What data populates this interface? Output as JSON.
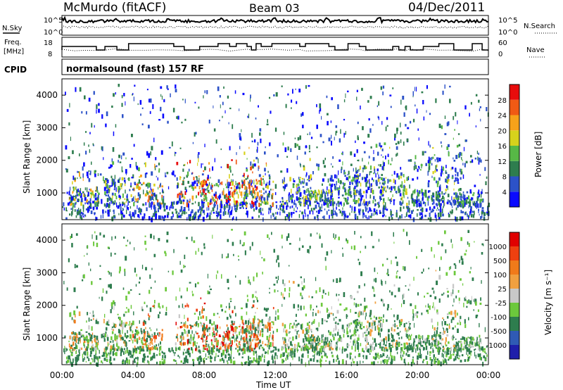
{
  "header": {
    "station": "McMurdo (fitACF)",
    "beam": "Beam 03",
    "date": "04/Dec/2011"
  },
  "top_panels": {
    "nsky_label": "N.Sky",
    "nsearch_label": "N.Search",
    "nsky_ticks": [
      "10^5",
      "10^0"
    ],
    "nsearch_ticks": [
      "10^5",
      "10^0"
    ],
    "freq_label_line1": "Freq.",
    "freq_label_line2": "[MHz]",
    "freq_ticks": [
      "18",
      "8"
    ],
    "nave_label": "Nave",
    "nave_ticks": [
      "60",
      "0"
    ],
    "cpid_label": "CPID",
    "cpid_text": "normalsound (fast) 157 RF"
  },
  "colors": {
    "power": [
      "#0a0aff",
      "#2c52c8",
      "#2e7d4e",
      "#57b846",
      "#d7d21c",
      "#f7a21a",
      "#f05a14",
      "#e80c0c"
    ],
    "velocity": [
      "#1e1eaa",
      "#2f5ab5",
      "#2e7d4e",
      "#6cc83c",
      "#c8c8c8",
      "#f0a040",
      "#f07a1a",
      "#ee4010",
      "#e00000"
    ]
  },
  "chart_data": [
    {
      "type": "heatmap",
      "title": "Power",
      "ylabel": "Slant Range [km]",
      "ylim": [
        180,
        4500
      ],
      "yticks": [
        "1000",
        "2000",
        "3000",
        "4000"
      ],
      "xlim": [
        "00:00",
        "24:00"
      ],
      "colorbar": {
        "label": "Power [dB]",
        "ticks": [
          "4",
          "8",
          "12",
          "16",
          "20",
          "24",
          "28"
        ]
      }
    },
    {
      "type": "heatmap",
      "title": "Velocity",
      "ylabel": "Slant Range [km]",
      "ylim": [
        180,
        4500
      ],
      "yticks": [
        "1000",
        "2000",
        "3000",
        "4000"
      ],
      "xlabel": "Time UT",
      "xticks": [
        "00:00",
        "04:00",
        "08:00",
        "12:00",
        "16:00",
        "20:00",
        "00:00"
      ],
      "colorbar": {
        "label": "Velocity [m s⁻¹]",
        "ticks": [
          "1000",
          "500",
          "100",
          "25",
          "-25",
          "-100",
          "-500",
          "-1000"
        ]
      }
    }
  ]
}
